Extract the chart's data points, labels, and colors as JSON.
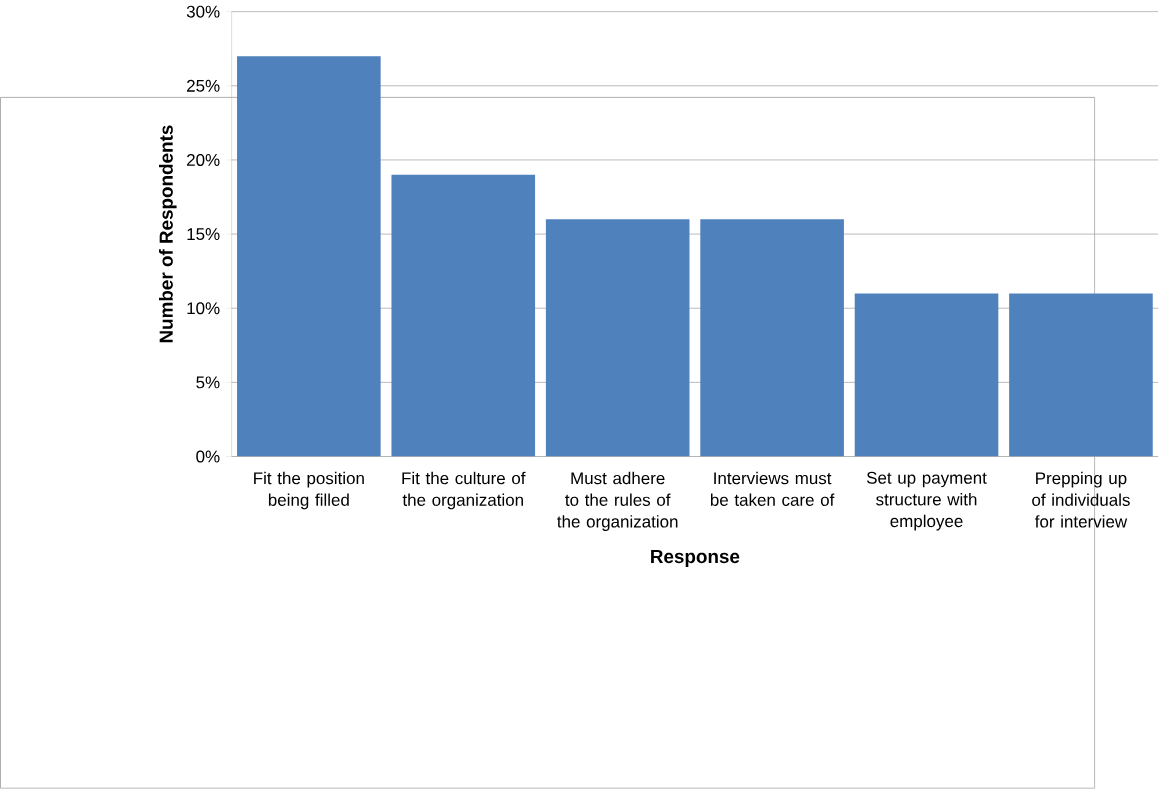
{
  "chart_data": {
    "type": "bar",
    "xlabel": "Response",
    "ylabel": "Number of Respondents",
    "categories": [
      "Fit the position being filled",
      "Fit the culture of the organization",
      "Must adhere to the rules of the organization",
      "Interviews must be taken care of",
      "Set up payment structure with employee",
      "Prepping up of individuals for interview"
    ],
    "values": [
      27,
      19,
      16,
      16,
      11,
      11
    ],
    "color": "#4f81bd",
    "ylim": [
      0,
      30
    ],
    "yticks": [
      {
        "value": 0,
        "label": "0%"
      },
      {
        "value": 5,
        "label": "5%"
      },
      {
        "value": 10,
        "label": "10%"
      },
      {
        "value": 15,
        "label": "15%"
      },
      {
        "value": 20,
        "label": "20%"
      },
      {
        "value": 25,
        "label": "25%"
      },
      {
        "value": 30,
        "label": "30%"
      }
    ],
    "grid": "y"
  }
}
